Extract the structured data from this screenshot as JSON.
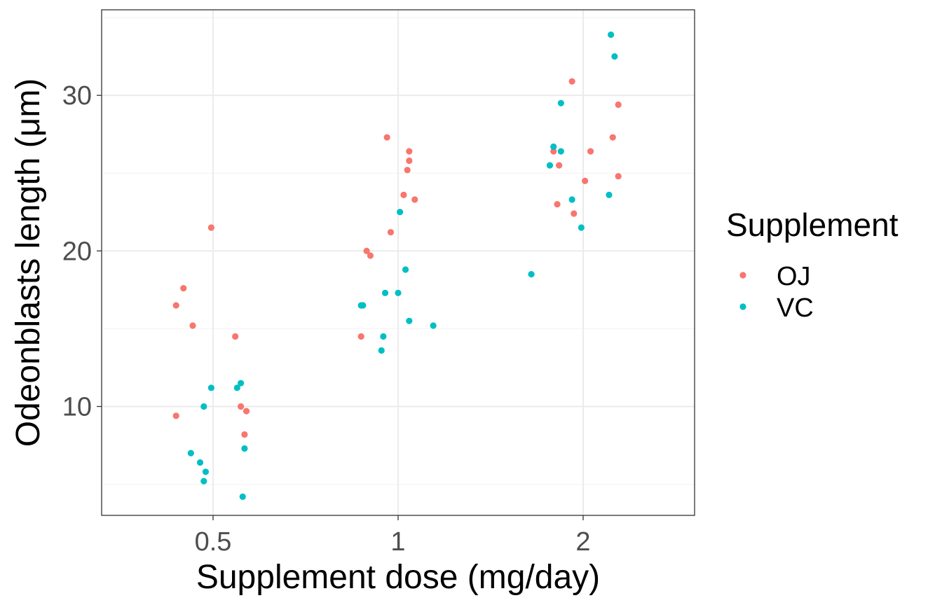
{
  "chart_data": {
    "type": "scatter",
    "xlabel": "Supplement dose (mg/day)",
    "ylabel": "Odeonblasts length (μm)",
    "x_type": "categorical",
    "categories": [
      "0.5",
      "1",
      "2"
    ],
    "ylim": [
      3.0,
      35.5
    ],
    "yticks": [
      10,
      20,
      30
    ],
    "grid": true,
    "legend": {
      "title": "Supplement",
      "position": "right",
      "entries": [
        "OJ",
        "VC"
      ]
    },
    "series": [
      {
        "name": "OJ",
        "color": "#F8766D",
        "points": [
          {
            "x": "0.5",
            "jitter": -0.2,
            "y": 9.4
          },
          {
            "x": "0.5",
            "jitter": -0.2,
            "y": 16.5
          },
          {
            "x": "0.5",
            "jitter": -0.16,
            "y": 17.6
          },
          {
            "x": "0.5",
            "jitter": -0.11,
            "y": 15.2
          },
          {
            "x": "0.5",
            "jitter": -0.01,
            "y": 21.5
          },
          {
            "x": "0.5",
            "jitter": 0.12,
            "y": 14.5
          },
          {
            "x": "0.5",
            "jitter": 0.15,
            "y": 10.0
          },
          {
            "x": "0.5",
            "jitter": 0.18,
            "y": 9.7
          },
          {
            "x": "0.5",
            "jitter": 0.17,
            "y": 8.2
          },
          {
            "x": "1",
            "jitter": -0.2,
            "y": 14.5
          },
          {
            "x": "1",
            "jitter": -0.17,
            "y": 20.0
          },
          {
            "x": "1",
            "jitter": -0.15,
            "y": 19.7
          },
          {
            "x": "1",
            "jitter": -0.06,
            "y": 27.3
          },
          {
            "x": "1",
            "jitter": -0.04,
            "y": 21.2
          },
          {
            "x": "1",
            "jitter": 0.03,
            "y": 23.6
          },
          {
            "x": "1",
            "jitter": 0.05,
            "y": 25.2
          },
          {
            "x": "1",
            "jitter": 0.06,
            "y": 25.8
          },
          {
            "x": "1",
            "jitter": 0.06,
            "y": 26.4
          },
          {
            "x": "1",
            "jitter": 0.09,
            "y": 23.3
          },
          {
            "x": "2",
            "jitter": -0.16,
            "y": 26.4
          },
          {
            "x": "2",
            "jitter": -0.14,
            "y": 23.0
          },
          {
            "x": "2",
            "jitter": -0.13,
            "y": 25.5
          },
          {
            "x": "2",
            "jitter": -0.06,
            "y": 30.9
          },
          {
            "x": "2",
            "jitter": -0.05,
            "y": 22.4
          },
          {
            "x": "2",
            "jitter": 0.01,
            "y": 24.5
          },
          {
            "x": "2",
            "jitter": 0.04,
            "y": 26.4
          },
          {
            "x": "2",
            "jitter": 0.16,
            "y": 27.3
          },
          {
            "x": "2",
            "jitter": 0.19,
            "y": 29.4
          },
          {
            "x": "2",
            "jitter": 0.19,
            "y": 24.8
          }
        ]
      },
      {
        "name": "VC",
        "color": "#00BFC4",
        "points": [
          {
            "x": "0.5",
            "jitter": -0.12,
            "y": 7.0
          },
          {
            "x": "0.5",
            "jitter": -0.07,
            "y": 6.4
          },
          {
            "x": "0.5",
            "jitter": -0.05,
            "y": 10.0
          },
          {
            "x": "0.5",
            "jitter": -0.04,
            "y": 5.8
          },
          {
            "x": "0.5",
            "jitter": -0.05,
            "y": 5.2
          },
          {
            "x": "0.5",
            "jitter": -0.01,
            "y": 11.2
          },
          {
            "x": "0.5",
            "jitter": 0.13,
            "y": 11.2
          },
          {
            "x": "0.5",
            "jitter": 0.15,
            "y": 11.5
          },
          {
            "x": "0.5",
            "jitter": 0.17,
            "y": 7.3
          },
          {
            "x": "0.5",
            "jitter": 0.16,
            "y": 4.2
          },
          {
            "x": "1",
            "jitter": -0.2,
            "y": 16.5
          },
          {
            "x": "1",
            "jitter": -0.19,
            "y": 16.5
          },
          {
            "x": "1",
            "jitter": -0.09,
            "y": 13.6
          },
          {
            "x": "1",
            "jitter": -0.08,
            "y": 14.5
          },
          {
            "x": "1",
            "jitter": -0.07,
            "y": 17.3
          },
          {
            "x": "1",
            "jitter": 0.0,
            "y": 17.3
          },
          {
            "x": "1",
            "jitter": 0.01,
            "y": 22.5
          },
          {
            "x": "1",
            "jitter": 0.04,
            "y": 18.8
          },
          {
            "x": "1",
            "jitter": 0.06,
            "y": 15.5
          },
          {
            "x": "1",
            "jitter": 0.19,
            "y": 15.2
          },
          {
            "x": "2",
            "jitter": -0.28,
            "y": 18.5
          },
          {
            "x": "2",
            "jitter": -0.18,
            "y": 25.5
          },
          {
            "x": "2",
            "jitter": -0.16,
            "y": 26.7
          },
          {
            "x": "2",
            "jitter": -0.12,
            "y": 29.5
          },
          {
            "x": "2",
            "jitter": -0.12,
            "y": 26.4
          },
          {
            "x": "2",
            "jitter": -0.06,
            "y": 23.3
          },
          {
            "x": "2",
            "jitter": -0.01,
            "y": 21.5
          },
          {
            "x": "2",
            "jitter": 0.14,
            "y": 23.6
          },
          {
            "x": "2",
            "jitter": 0.15,
            "y": 33.9
          },
          {
            "x": "2",
            "jitter": 0.17,
            "y": 32.5
          }
        ]
      }
    ]
  }
}
